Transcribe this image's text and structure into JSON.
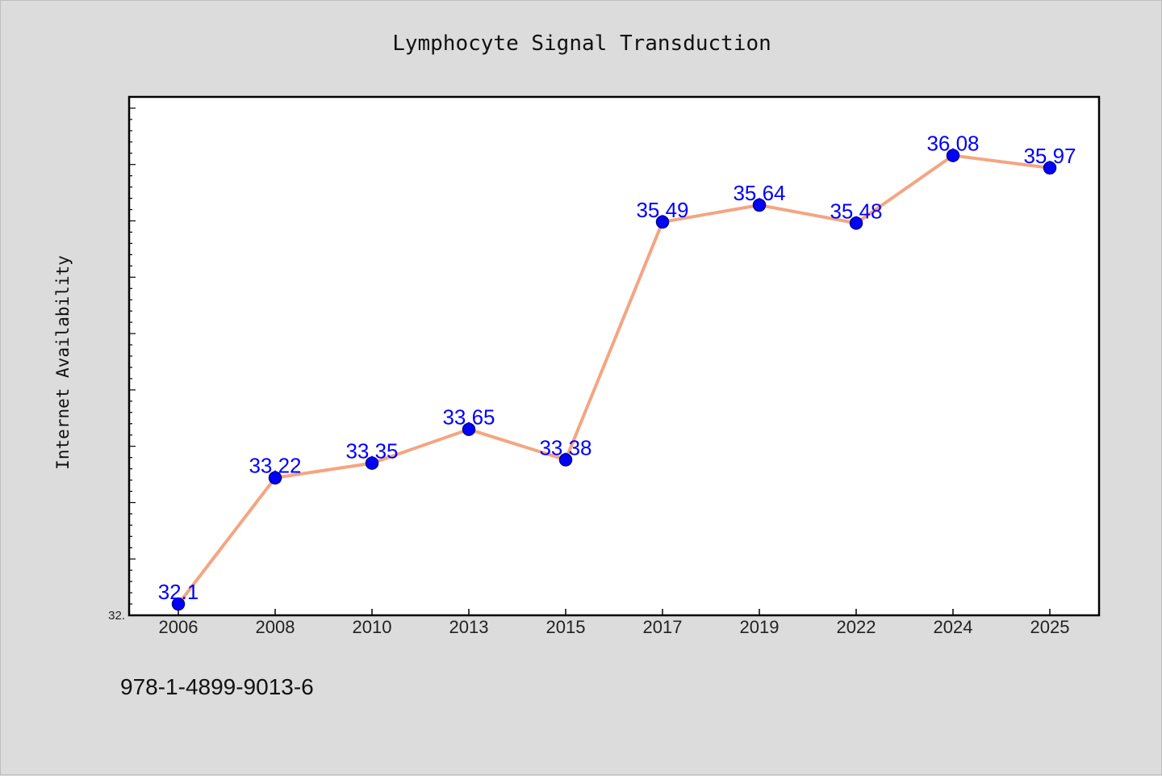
{
  "chart_data": {
    "type": "line",
    "title": "Lymphocyte Signal Transduction",
    "ylabel": "Internet Availability",
    "xlabel": "",
    "categories": [
      "2006",
      "2008",
      "2010",
      "2013",
      "2015",
      "2017",
      "2019",
      "2022",
      "2024",
      "2025"
    ],
    "series": [
      {
        "values": [
          32.1,
          33.22,
          33.35,
          33.65,
          33.38,
          35.49,
          35.64,
          35.48,
          36.08,
          35.97
        ],
        "labels": [
          "32.1",
          "33.22",
          "33.35",
          "33.65",
          "33.38",
          "35.49",
          "35.64",
          "35.48",
          "36.08",
          "35.97"
        ]
      }
    ],
    "ylim": [
      32.0,
      36.6
    ],
    "y_min_label": "32.",
    "grid": false,
    "legend": "none",
    "colors": {
      "line": "#f4a582",
      "marker_fill": "#0000ff",
      "marker_edge": "#00008b",
      "data_label": "#0000ff",
      "plot_background": "#ffffff",
      "figure_background": "#dcdcdc"
    }
  },
  "footnote": "978-1-4899-9013-6"
}
